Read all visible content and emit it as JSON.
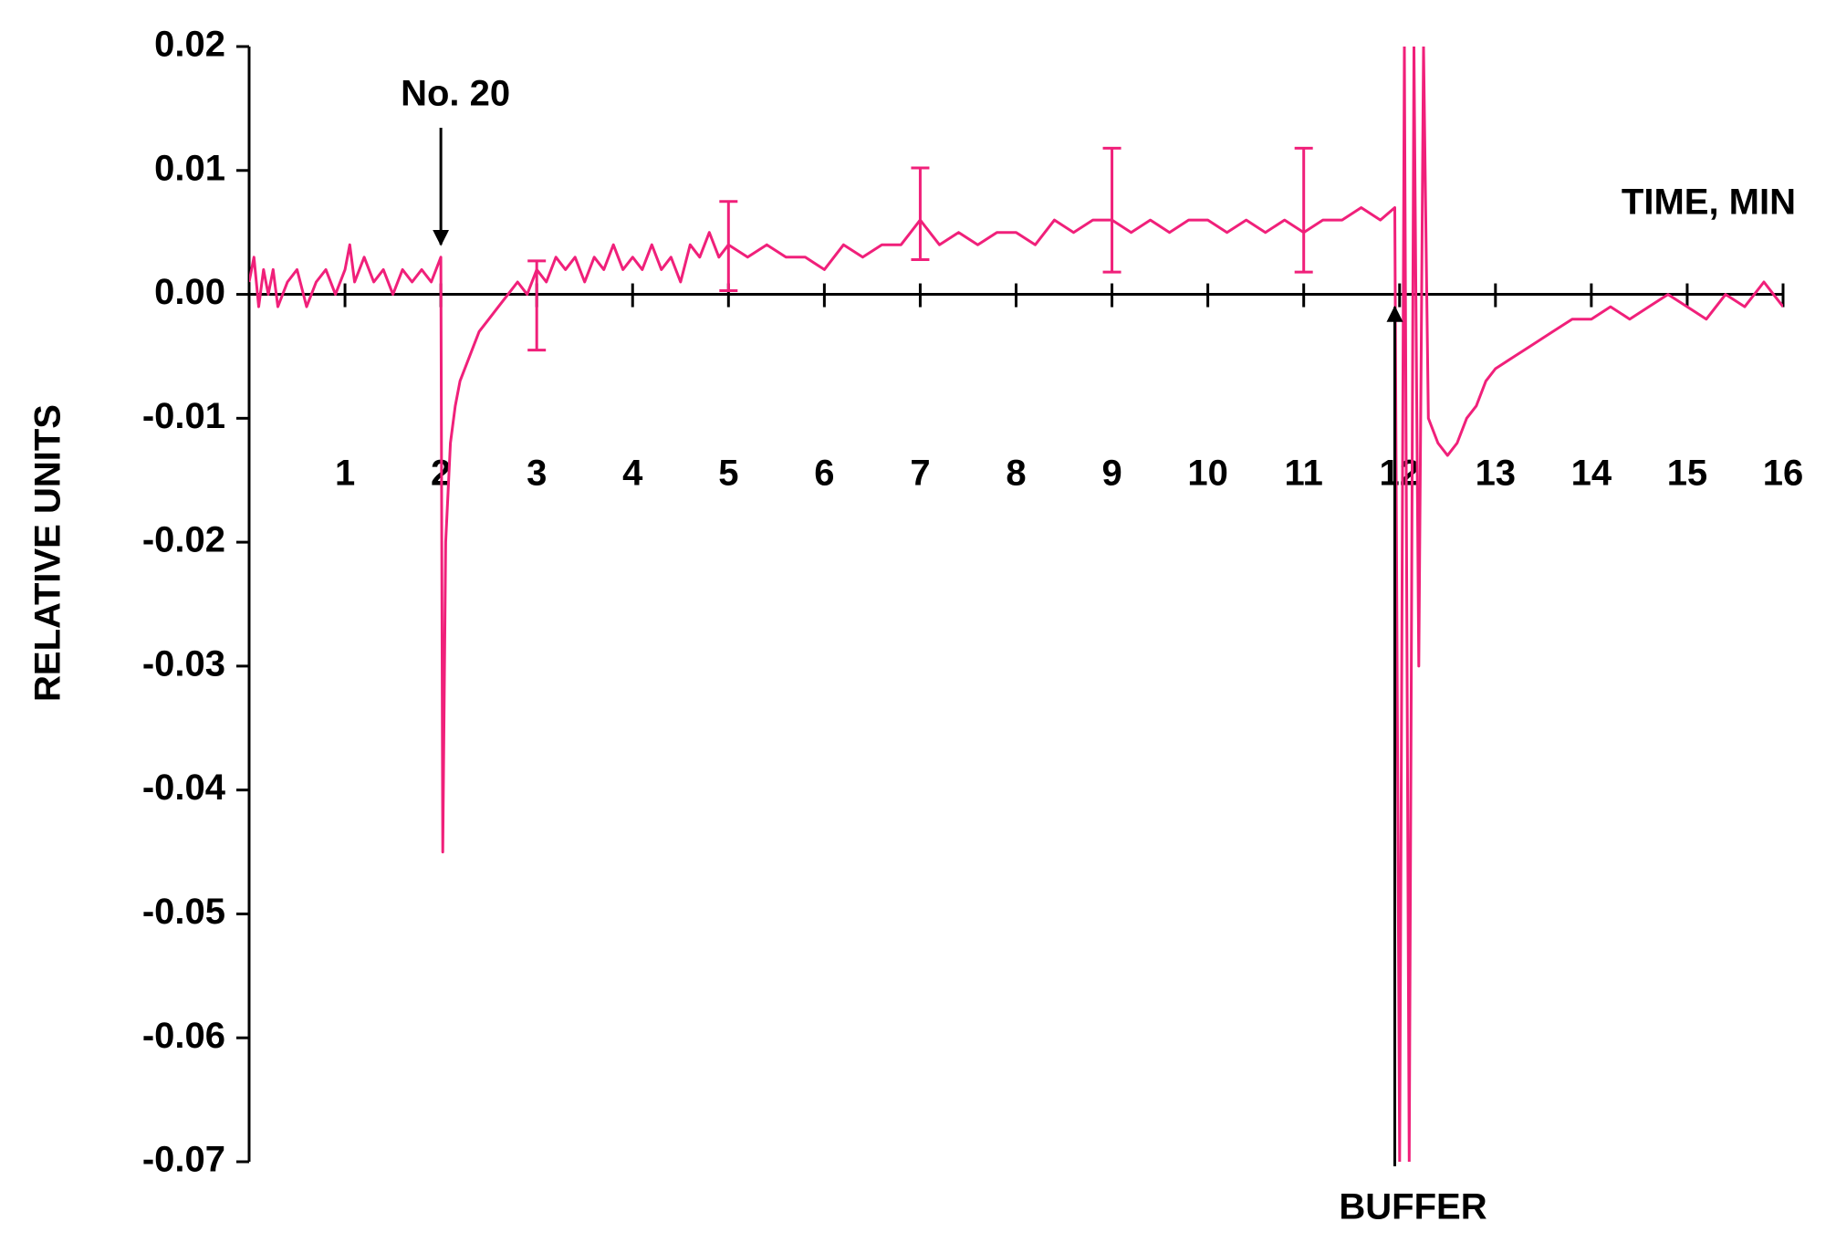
{
  "chart_data": {
    "type": "line",
    "y_label": "RELATIVE UNITS",
    "x_label": "TIME, MIN",
    "annotations": [
      {
        "text": "No. 20",
        "x": 2
      },
      {
        "text": "BUFFER",
        "x": 11.95
      }
    ],
    "xlim": [
      0,
      16
    ],
    "xticks": [
      1,
      2,
      3,
      4,
      5,
      6,
      7,
      8,
      9,
      10,
      11,
      12,
      13,
      14,
      15,
      16
    ],
    "ylim": [
      -0.07,
      0.02
    ],
    "yticks": [
      0.02,
      0.01,
      {
        "value": 0,
        "label": "0.00"
      },
      -0.01,
      -0.02,
      -0.03,
      -0.04,
      -0.05,
      -0.06,
      -0.07
    ],
    "series": [
      {
        "color": "#f0207a",
        "x": [
          0.0,
          0.05,
          0.1,
          0.15,
          0.2,
          0.25,
          0.3,
          0.4,
          0.5,
          0.6,
          0.7,
          0.8,
          0.9,
          1.0,
          1.05,
          1.1,
          1.2,
          1.3,
          1.4,
          1.5,
          1.6,
          1.7,
          1.8,
          1.9,
          2.0,
          2.02,
          2.05,
          2.1,
          2.15,
          2.2,
          2.3,
          2.4,
          2.5,
          2.6,
          2.7,
          2.8,
          2.9,
          3.0,
          3.1,
          3.2,
          3.3,
          3.4,
          3.5,
          3.6,
          3.7,
          3.8,
          3.9,
          4.0,
          4.1,
          4.2,
          4.3,
          4.4,
          4.5,
          4.6,
          4.7,
          4.8,
          4.9,
          5.0,
          5.2,
          5.4,
          5.6,
          5.8,
          6.0,
          6.2,
          6.4,
          6.6,
          6.8,
          7.0,
          7.2,
          7.4,
          7.6,
          7.8,
          8.0,
          8.2,
          8.4,
          8.6,
          8.8,
          9.0,
          9.2,
          9.4,
          9.6,
          9.8,
          10.0,
          10.2,
          10.4,
          10.6,
          10.8,
          11.0,
          11.2,
          11.4,
          11.6,
          11.8,
          11.95,
          12.0,
          12.05,
          12.1,
          12.15,
          12.2,
          12.25,
          12.3,
          12.4,
          12.5,
          12.6,
          12.7,
          12.8,
          12.9,
          13.0,
          13.2,
          13.4,
          13.6,
          13.8,
          14.0,
          14.2,
          14.4,
          14.6,
          14.8,
          15.0,
          15.2,
          15.4,
          15.6,
          15.8,
          15.9,
          16.0
        ],
        "values": [
          0.001,
          0.003,
          -0.001,
          0.002,
          0.0,
          0.002,
          -0.001,
          0.001,
          0.002,
          -0.001,
          0.001,
          0.002,
          0.0,
          0.002,
          0.004,
          0.001,
          0.003,
          0.001,
          0.002,
          0.0,
          0.002,
          0.001,
          0.002,
          0.001,
          0.003,
          -0.045,
          -0.02,
          -0.012,
          -0.009,
          -0.007,
          -0.005,
          -0.003,
          -0.002,
          -0.001,
          0.0,
          0.001,
          0.0,
          0.002,
          0.001,
          0.003,
          0.002,
          0.003,
          0.001,
          0.003,
          0.002,
          0.004,
          0.002,
          0.003,
          0.002,
          0.004,
          0.002,
          0.003,
          0.001,
          0.004,
          0.003,
          0.005,
          0.003,
          0.004,
          0.003,
          0.004,
          0.003,
          0.003,
          0.002,
          0.004,
          0.003,
          0.004,
          0.004,
          0.006,
          0.004,
          0.005,
          0.004,
          0.005,
          0.005,
          0.004,
          0.006,
          0.005,
          0.006,
          0.006,
          0.005,
          0.006,
          0.005,
          0.006,
          0.006,
          0.005,
          0.006,
          0.005,
          0.006,
          0.005,
          0.006,
          0.006,
          0.007,
          0.006,
          0.007,
          -0.07,
          0.02,
          -0.07,
          0.02,
          -0.03,
          0.02,
          -0.01,
          -0.012,
          -0.013,
          -0.012,
          -0.01,
          -0.009,
          -0.007,
          -0.006,
          -0.005,
          -0.004,
          -0.003,
          -0.002,
          -0.002,
          -0.001,
          -0.002,
          -0.001,
          0.0,
          -0.001,
          -0.002,
          0.0,
          -0.001,
          0.001,
          0.0,
          -0.001
        ]
      }
    ],
    "error_bars": {
      "x": [
        3,
        5,
        7,
        9,
        11
      ],
      "values": [
        -0.0009,
        0.0039,
        0.0065,
        0.0068,
        0.0068
      ],
      "errors": [
        0.0036,
        0.0036,
        0.0037,
        0.005,
        0.005
      ]
    }
  }
}
